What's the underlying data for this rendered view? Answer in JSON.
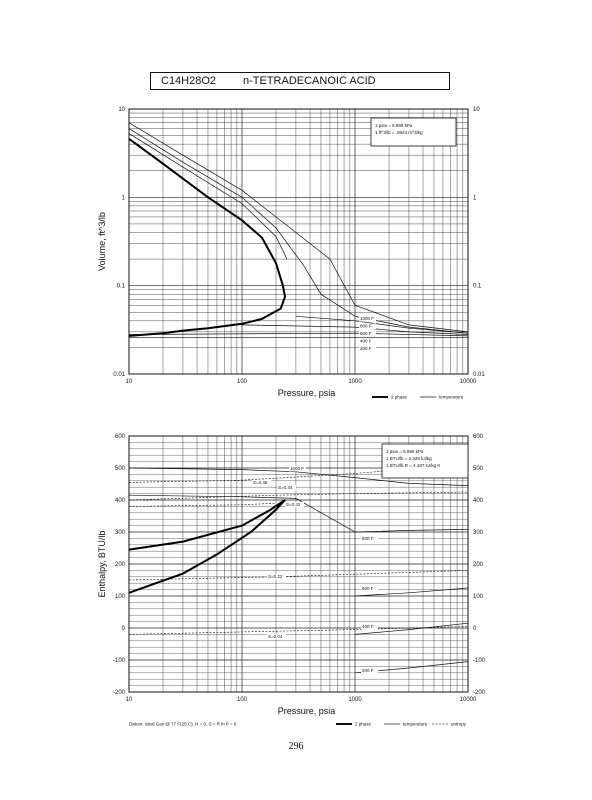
{
  "header": {
    "formula": "C14H28O2",
    "compound": "n-TETRADECANOIC ACID"
  },
  "page_number": "296",
  "chart_data": [
    {
      "type": "line",
      "xlabel": "Pressure, psia",
      "ylabel": "Volume, ft^3/lb",
      "xscale": "log",
      "yscale": "log",
      "xlim": [
        10,
        10000
      ],
      "ylim": [
        0.01,
        10
      ],
      "x_ticks": [
        "10",
        "100",
        "1000",
        "10000"
      ],
      "y_ticks_left": [
        "0.01",
        "0.1",
        "1",
        "10"
      ],
      "y_ticks_right": [
        "0.01",
        "0.1",
        "1",
        "10"
      ],
      "grid": true,
      "conversion_notes": [
        "1 psia = 6.895 kPa",
        "1 ft^3/lb = .0624 m^3/kg"
      ],
      "legend": [
        "2 phase",
        "temperature"
      ],
      "legend_position": "bottom-right",
      "isotherm_labels": [
        "1000 F",
        "800 F",
        "600 F",
        "400 F",
        "200 F"
      ],
      "series": [
        {
          "kind": "2 phase",
          "points": [
            [
              10,
              4.6
            ],
            [
              20,
              2.4
            ],
            [
              50,
              1.0
            ],
            [
              100,
              0.55
            ],
            [
              150,
              0.35
            ],
            [
              200,
              0.18
            ],
            [
              230,
              0.1
            ],
            [
              240,
              0.075
            ],
            [
              220,
              0.055
            ],
            [
              150,
              0.042
            ],
            [
              100,
              0.037
            ],
            [
              50,
              0.033
            ],
            [
              30,
              0.031
            ],
            [
              20,
              0.029
            ],
            [
              10,
              0.027
            ]
          ]
        },
        {
          "kind": "temperature",
          "points": [
            [
              10,
              6.0
            ],
            [
              30,
              2.5
            ],
            [
              100,
              1.0
            ],
            [
              200,
              0.45
            ],
            [
              350,
              0.17
            ],
            [
              500,
              0.08
            ],
            [
              1000,
              0.045
            ],
            [
              3000,
              0.034
            ],
            [
              10000,
              0.029
            ]
          ]
        },
        {
          "kind": "temperature",
          "points": [
            [
              10,
              7.0
            ],
            [
              30,
              3.0
            ],
            [
              100,
              1.2
            ],
            [
              300,
              0.4
            ],
            [
              600,
              0.2
            ],
            [
              1000,
              0.06
            ],
            [
              3000,
              0.036
            ],
            [
              10000,
              0.03
            ]
          ]
        },
        {
          "kind": "temperature",
          "points": [
            [
              10,
              5.3
            ],
            [
              30,
              2.2
            ],
            [
              100,
              0.85
            ],
            [
              200,
              0.36
            ],
            [
              250,
              0.2
            ]
          ]
        },
        {
          "kind": "temperature",
          "points": [
            [
              300,
              0.045
            ],
            [
              1000,
              0.04
            ],
            [
              3000,
              0.033
            ],
            [
              10000,
              0.029
            ]
          ]
        },
        {
          "kind": "temperature",
          "points": [
            [
              100,
              0.036
            ],
            [
              1000,
              0.034
            ],
            [
              3000,
              0.03
            ],
            [
              10000,
              0.028
            ]
          ]
        },
        {
          "kind": "temperature",
          "points": [
            [
              10,
              0.028
            ],
            [
              1000,
              0.029
            ],
            [
              10000,
              0.027
            ]
          ]
        },
        {
          "kind": "temperature",
          "points": [
            [
              10,
              0.026
            ],
            [
              10000,
              0.026
            ]
          ]
        }
      ]
    },
    {
      "type": "line",
      "xlabel": "Pressure, psia",
      "ylabel": "Enthalpy, BTU/lb",
      "xscale": "log",
      "xlim": [
        10,
        10000
      ],
      "ylim": [
        -200,
        600
      ],
      "x_ticks": [
        "10",
        "100",
        "1000",
        "10000"
      ],
      "y_ticks_left": [
        "-200",
        "-100",
        "0",
        "100",
        "200",
        "300",
        "400",
        "500",
        "600"
      ],
      "y_ticks_right": [
        "-200",
        "-100",
        "0",
        "100",
        "200",
        "300",
        "400",
        "500",
        "600"
      ],
      "grid": true,
      "conversion_notes": [
        "1 psia = 6.895 kPa",
        "1 BTU/lb = 2.326 kJ/kg",
        "1 BTU/lb R = 4.187 kJ/kg K"
      ],
      "legend": [
        "2 phase",
        "temperature",
        "entropy"
      ],
      "legend_position": "bottom-right",
      "datum_note": "Datum: Ideal Gas @ 77 F(25 C), H = 0, S = R ln P = 0",
      "isotherm_labels": [
        "1000 F",
        "800 F",
        "600 F",
        "400 F",
        "200 F"
      ],
      "entropy_labels": [
        "S=0.46",
        "S=0.44",
        "S=0.42",
        "S=0.22",
        "S=0.04"
      ],
      "series": [
        {
          "kind": "2 phase",
          "points": [
            [
              10,
              245
            ],
            [
              30,
              270
            ],
            [
              100,
              320
            ],
            [
              180,
              370
            ],
            [
              240,
              400
            ],
            [
              200,
              370
            ],
            [
              120,
              300
            ],
            [
              60,
              230
            ],
            [
              30,
              170
            ],
            [
              10,
              110
            ]
          ]
        },
        {
          "kind": "temperature",
          "points": [
            [
              10,
              500
            ],
            [
              100,
              495
            ],
            [
              300,
              488
            ],
            [
              1000,
              470
            ],
            [
              3000,
              452
            ],
            [
              10000,
              445
            ]
          ]
        },
        {
          "kind": "temperature",
          "points": [
            [
              10,
              415
            ],
            [
              100,
              410
            ],
            [
              300,
              405
            ],
            [
              1000,
              300
            ],
            [
              3000,
              305
            ],
            [
              10000,
              308
            ]
          ]
        },
        {
          "kind": "temperature",
          "points": [
            [
              1000,
              100
            ],
            [
              3000,
              110
            ],
            [
              10000,
              125
            ]
          ]
        },
        {
          "kind": "temperature",
          "points": [
            [
              1000,
              -20
            ],
            [
              3000,
              -5
            ],
            [
              10000,
              15
            ]
          ]
        },
        {
          "kind": "temperature",
          "points": [
            [
              1000,
              -140
            ],
            [
              3000,
              -125
            ],
            [
              10000,
              -105
            ]
          ]
        },
        {
          "kind": "entropy",
          "points": [
            [
              10,
              455
            ],
            [
              100,
              462
            ],
            [
              300,
              472
            ],
            [
              1000,
              483
            ],
            [
              10000,
              510
            ]
          ]
        },
        {
          "kind": "entropy",
          "points": [
            [
              10,
              400
            ],
            [
              200,
              415
            ],
            [
              1000,
              420
            ],
            [
              10000,
              425
            ]
          ]
        },
        {
          "kind": "entropy",
          "points": [
            [
              10,
              380
            ],
            [
              100,
              385
            ],
            [
              200,
              390
            ]
          ]
        },
        {
          "kind": "entropy",
          "points": [
            [
              10,
              150
            ],
            [
              200,
              160
            ],
            [
              1000,
              168
            ],
            [
              10000,
              180
            ]
          ]
        },
        {
          "kind": "entropy",
          "points": [
            [
              10,
              -20
            ],
            [
              200,
              -10
            ],
            [
              1000,
              -5
            ],
            [
              10000,
              5
            ]
          ]
        }
      ]
    }
  ]
}
